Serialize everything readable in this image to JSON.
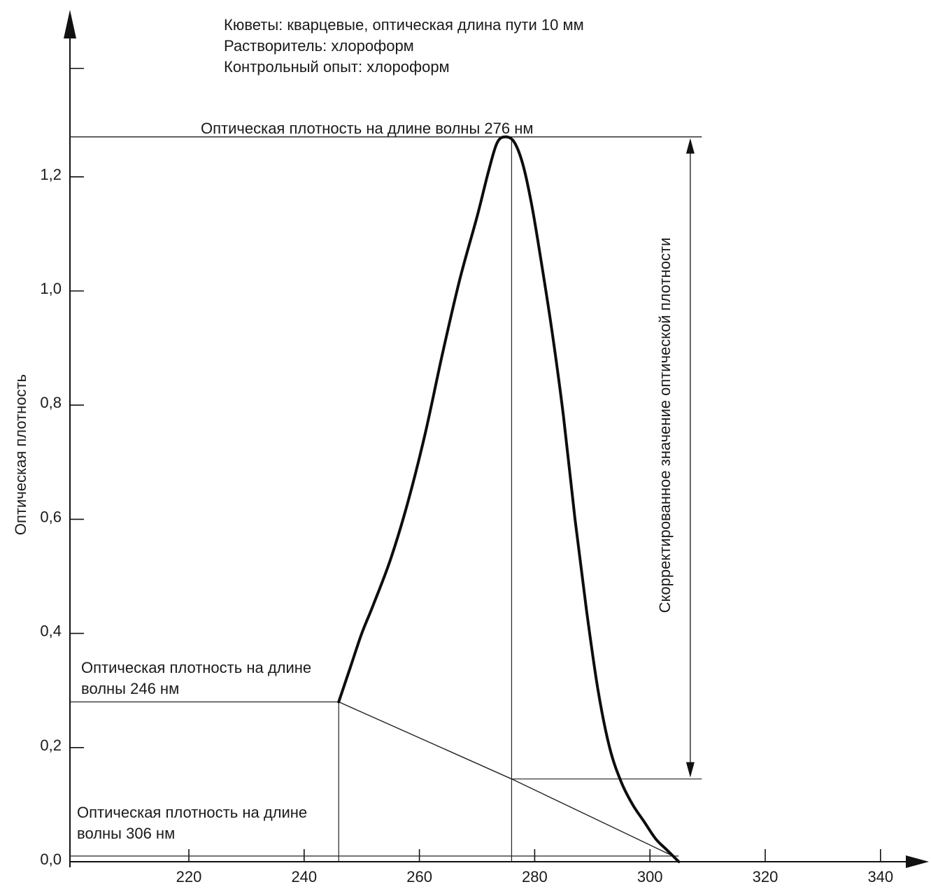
{
  "chart_data": {
    "type": "line",
    "notes": [
      "Кюветы: кварцевые, оптическая длина пути 10 мм",
      "Растворитель: хлороформ",
      "Контрольный опыт: хлороформ"
    ],
    "ylabel": "Оптическая плотность",
    "xlim": [
      200,
      345
    ],
    "ylim": [
      0,
      1.5
    ],
    "x_ticks": [
      220,
      240,
      260,
      280,
      300,
      320,
      340
    ],
    "y_ticks": [
      0.0,
      0.2,
      0.4,
      0.6,
      0.8,
      1.0,
      1.2
    ],
    "y_tick_labels": [
      "0,0",
      "0,2",
      "0,4",
      "0,6",
      "0,8",
      "1,0",
      "1,2"
    ],
    "series": [
      {
        "x": [
          246,
          248,
          250,
          252,
          255,
          258,
          261,
          264,
          267,
          270,
          272,
          273.5,
          275,
          276.5,
          278,
          279.5,
          281,
          283,
          285,
          287,
          289,
          291,
          293,
          295,
          297,
          299,
          301,
          303,
          305
        ],
        "y": [
          0.28,
          0.34,
          0.4,
          0.45,
          0.53,
          0.63,
          0.75,
          0.89,
          1.02,
          1.13,
          1.21,
          1.26,
          1.27,
          1.26,
          1.22,
          1.15,
          1.06,
          0.93,
          0.78,
          0.6,
          0.44,
          0.3,
          0.2,
          0.14,
          0.1,
          0.07,
          0.04,
          0.02,
          0.0
        ]
      }
    ],
    "baseline": {
      "x": [
        246,
        276,
        304
      ],
      "y": [
        0.28,
        0.145,
        0.01
      ]
    },
    "annotations": {
      "peak_label": "Оптическая плотность на длине волны 276 нм",
      "left_label_line1": "Оптическая плотность на длине",
      "left_label_line2": "волны 246 нм",
      "low_label_line1": "Оптическая плотность на длине",
      "low_label_line2": "волны 306 нм",
      "corrected_label": "Скорректированное значение оптической плотности"
    },
    "peak": {
      "x": 276,
      "y": 1.27
    },
    "baseline_at_peak": 0.145,
    "left_point": {
      "x": 246,
      "y": 0.28
    },
    "right_point": {
      "x": 306,
      "y": 0.0
    },
    "grid": false,
    "legend": "none"
  }
}
